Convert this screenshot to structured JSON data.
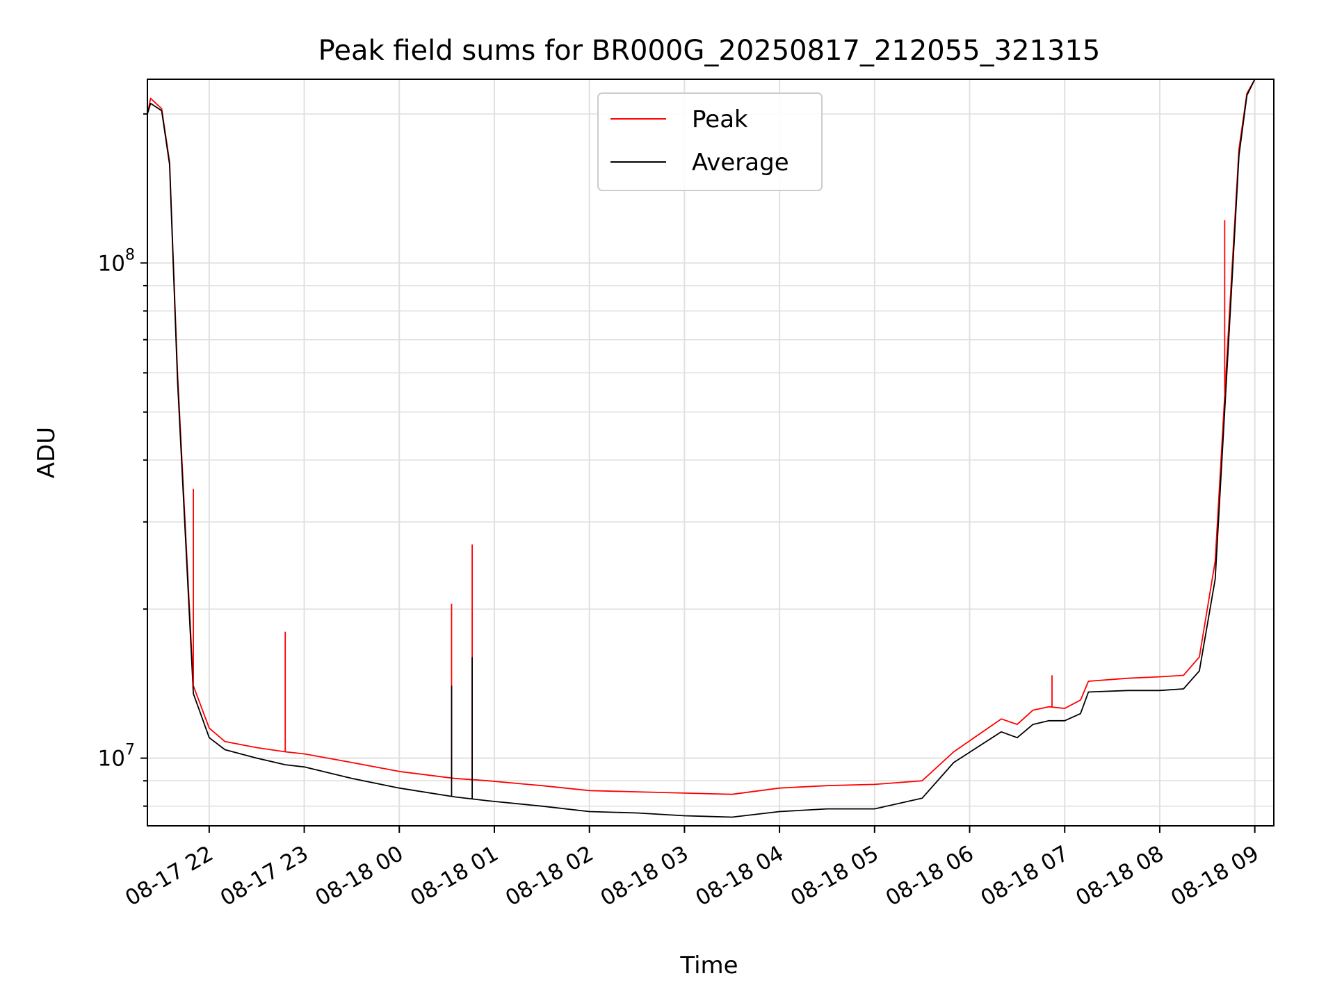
{
  "chart_data": {
    "type": "line",
    "title": "Peak field sums for BR000G_20250817_212055_321315",
    "xlabel": "Time",
    "ylabel": "ADU",
    "yscale": "log",
    "xlim": [
      "2025-08-17 21:21",
      "2025-08-18 09:12"
    ],
    "ylim": [
      7300000,
      235000000
    ],
    "grid": true,
    "legend_position": "top-center",
    "x_tick_labels": [
      "08-17 22",
      "08-17 23",
      "08-18 00",
      "08-18 01",
      "08-18 02",
      "08-18 03",
      "08-18 04",
      "08-18 05",
      "08-18 06",
      "08-18 07",
      "08-18 08",
      "08-18 09"
    ],
    "x_tick_times": [
      "2025-08-17 22:00",
      "2025-08-17 23:00",
      "2025-08-18 00:00",
      "2025-08-18 01:00",
      "2025-08-18 02:00",
      "2025-08-18 03:00",
      "2025-08-18 04:00",
      "2025-08-18 05:00",
      "2025-08-18 06:00",
      "2025-08-18 07:00",
      "2025-08-18 08:00",
      "2025-08-18 09:00"
    ],
    "y_major_ticks": [
      {
        "value": 10000000,
        "base": "10",
        "exp": "7"
      },
      {
        "value": 100000000,
        "base": "10",
        "exp": "8"
      }
    ],
    "series": [
      {
        "name": "Peak",
        "color": "#ff0000",
        "x": [
          "2025-08-17 21:21",
          "2025-08-17 21:23",
          "2025-08-17 21:30",
          "2025-08-17 21:35",
          "2025-08-17 21:40",
          "2025-08-17 21:50",
          "2025-08-17 22:00",
          "2025-08-17 22:10",
          "2025-08-17 22:30",
          "2025-08-17 22:48",
          "2025-08-17 23:00",
          "2025-08-17 23:30",
          "2025-08-18 00:00",
          "2025-08-18 00:35",
          "2025-08-18 00:56",
          "2025-08-18 01:30",
          "2025-08-18 02:00",
          "2025-08-18 02:30",
          "2025-08-18 03:00",
          "2025-08-18 03:30",
          "2025-08-18 04:00",
          "2025-08-18 04:30",
          "2025-08-18 05:00",
          "2025-08-18 05:30",
          "2025-08-18 05:50",
          "2025-08-18 06:20",
          "2025-08-18 06:30",
          "2025-08-18 06:40",
          "2025-08-18 06:50",
          "2025-08-18 07:00",
          "2025-08-18 07:10",
          "2025-08-18 07:15",
          "2025-08-18 07:40",
          "2025-08-18 08:00",
          "2025-08-18 08:15",
          "2025-08-18 08:25",
          "2025-08-18 08:35",
          "2025-08-18 08:45",
          "2025-08-18 08:50",
          "2025-08-18 08:55",
          "2025-08-18 09:00"
        ],
        "y": [
          200000000,
          215000000,
          205000000,
          160000000,
          60000000,
          14000000,
          11500000,
          10800000,
          10500000,
          10300000,
          10200000,
          9800000,
          9400000,
          9100000,
          9000000,
          8800000,
          8600000,
          8550000,
          8500000,
          8450000,
          8700000,
          8800000,
          8850000,
          9000000,
          10300000,
          12000000,
          11700000,
          12500000,
          12700000,
          12600000,
          13100000,
          14300000,
          14500000,
          14600000,
          14700000,
          16000000,
          25000000,
          90000000,
          170000000,
          220000000,
          235000000
        ]
      },
      {
        "name": "Average",
        "color": "#000000",
        "x": [
          "2025-08-17 21:21",
          "2025-08-17 21:23",
          "2025-08-17 21:30",
          "2025-08-17 21:35",
          "2025-08-17 21:40",
          "2025-08-17 21:50",
          "2025-08-17 22:00",
          "2025-08-17 22:10",
          "2025-08-17 22:30",
          "2025-08-17 22:48",
          "2025-08-17 23:00",
          "2025-08-17 23:30",
          "2025-08-18 00:00",
          "2025-08-18 00:35",
          "2025-08-18 00:56",
          "2025-08-18 01:30",
          "2025-08-18 02:00",
          "2025-08-18 02:30",
          "2025-08-18 03:00",
          "2025-08-18 03:30",
          "2025-08-18 04:00",
          "2025-08-18 04:30",
          "2025-08-18 05:00",
          "2025-08-18 05:30",
          "2025-08-18 05:50",
          "2025-08-18 06:20",
          "2025-08-18 06:30",
          "2025-08-18 06:40",
          "2025-08-18 06:50",
          "2025-08-18 07:00",
          "2025-08-18 07:10",
          "2025-08-18 07:15",
          "2025-08-18 07:40",
          "2025-08-18 08:00",
          "2025-08-18 08:15",
          "2025-08-18 08:25",
          "2025-08-18 08:35",
          "2025-08-18 08:45",
          "2025-08-18 08:50",
          "2025-08-18 08:55",
          "2025-08-18 09:00"
        ],
        "y": [
          200000000,
          210000000,
          203000000,
          158000000,
          58000000,
          13500000,
          11000000,
          10400000,
          10000000,
          9700000,
          9600000,
          9100000,
          8700000,
          8350000,
          8200000,
          8000000,
          7800000,
          7750000,
          7650000,
          7600000,
          7800000,
          7900000,
          7900000,
          8300000,
          9800000,
          11300000,
          11000000,
          11700000,
          11900000,
          11900000,
          12300000,
          13600000,
          13700000,
          13700000,
          13800000,
          15000000,
          23000000,
          85000000,
          165000000,
          218000000,
          235000000
        ]
      }
    ],
    "spikes": [
      {
        "series": "Peak",
        "x": "2025-08-17 21:50",
        "y": 35000000
      },
      {
        "series": "Peak",
        "x": "2025-08-17 22:48",
        "y": 18000000
      },
      {
        "series": "Peak",
        "x": "2025-08-18 00:33",
        "y": 20500000
      },
      {
        "series": "Average",
        "x": "2025-08-18 00:33",
        "y": 14000000
      },
      {
        "series": "Peak",
        "x": "2025-08-18 00:46",
        "y": 27000000
      },
      {
        "series": "Average",
        "x": "2025-08-18 00:46",
        "y": 16000000
      },
      {
        "series": "Peak",
        "x": "2025-08-18 06:52",
        "y": 14700000
      },
      {
        "series": "Peak",
        "x": "2025-08-18 08:41",
        "y": 122000000
      }
    ]
  }
}
